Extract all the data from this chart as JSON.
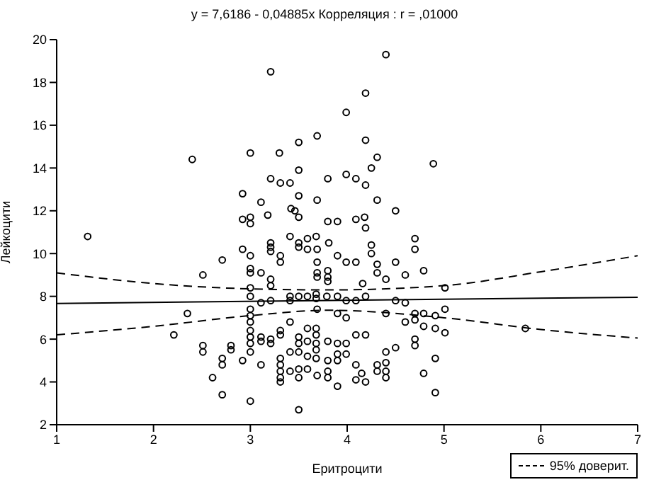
{
  "chart_data": {
    "type": "scatter",
    "title": "y = 7,6186 - 0,04885x  Корреляция : r = ,01000",
    "xlabel": "Еритроцити",
    "ylabel": "Лейкоцити",
    "xlim": [
      1,
      7
    ],
    "xticks": [
      1,
      2,
      3,
      4,
      5,
      6,
      7
    ],
    "ylim": [
      2,
      20
    ],
    "yticks": [
      2,
      4,
      6,
      8,
      10,
      12,
      14,
      16,
      18,
      20
    ],
    "legend": "bottom right",
    "series": [
      {
        "color": "#000000",
        "marker": "circle",
        "x": [
          1.32,
          2.4,
          3.21,
          4.19,
          3.99,
          4.19,
          3.0,
          3.3,
          3.5,
          3.69,
          3.5,
          3.21,
          3.31,
          3.41,
          3.8,
          3.99,
          4.09,
          4.19,
          2.92,
          3.5,
          3.11,
          3.69,
          3.42,
          3.46,
          2.92,
          3.0,
          3.0,
          3.18,
          3.5,
          3.8,
          3.9,
          4.09,
          4.18,
          4.19,
          3.41,
          3.59,
          3.68,
          4.4,
          4.31,
          4.25,
          4.89,
          4.31,
          4.5,
          4.7,
          3.81,
          2.92,
          3.0,
          3.21,
          3.21,
          3.21,
          3.31,
          3.31,
          3.5,
          3.5,
          3.59,
          3.69,
          3.9,
          3.99,
          4.09,
          2.71,
          2.51,
          3.0,
          3.0,
          3.11,
          3.21,
          3.21,
          3.69,
          3.69,
          3.69,
          3.8,
          3.8,
          3.8,
          4.16,
          3.0,
          3.0,
          3.11,
          3.21,
          3.41,
          3.41,
          3.5,
          3.59,
          3.68,
          3.68,
          3.79,
          3.9,
          3.99,
          4.09,
          4.19,
          2.35,
          3.0,
          3.0,
          3.41,
          3.69,
          3.9,
          3.99,
          2.21,
          2.51,
          2.51,
          2.8,
          2.8,
          3.0,
          3.0,
          3.0,
          3.0,
          3.0,
          3.11,
          3.11,
          3.21,
          3.21,
          3.31,
          3.31,
          3.5,
          3.5,
          3.5,
          3.59,
          3.59,
          3.68,
          3.68,
          3.68,
          3.68,
          3.68,
          3.8,
          3.9,
          3.99,
          4.09,
          4.19,
          2.71,
          2.71,
          2.92,
          3.11,
          3.31,
          3.31,
          3.31,
          3.31,
          3.31,
          3.41,
          3.41,
          3.5,
          3.5,
          3.59,
          3.59,
          3.69,
          3.8,
          3.8,
          3.8,
          3.9,
          3.9,
          3.99,
          3.9,
          4.09,
          4.09,
          4.19,
          2.61,
          2.71,
          3.0,
          3.5,
          4.7,
          4.79,
          5.01,
          4.5,
          4.6,
          4.4,
          4.31,
          4.31,
          4.25,
          4.25,
          4.5,
          4.6,
          4.4,
          4.7,
          4.79,
          4.91,
          5.01,
          4.7,
          4.79,
          4.91,
          5.01,
          4.6,
          5.84,
          4.7,
          4.7,
          4.5,
          4.4,
          4.4,
          4.4,
          4.4,
          4.31,
          4.31,
          4.91,
          4.79,
          4.91,
          4.15
        ],
        "values": [
          10.8,
          14.4,
          18.5,
          17.5,
          16.6,
          15.3,
          14.7,
          14.7,
          15.2,
          15.5,
          13.9,
          13.5,
          13.3,
          13.3,
          13.5,
          13.7,
          13.5,
          13.2,
          12.8,
          12.7,
          12.4,
          12.5,
          12.1,
          12.0,
          11.6,
          11.7,
          11.4,
          11.8,
          11.7,
          11.5,
          11.5,
          11.6,
          11.7,
          11.2,
          10.8,
          10.7,
          10.8,
          19.3,
          14.5,
          14.0,
          14.2,
          12.5,
          12.0,
          10.7,
          10.5,
          10.2,
          9.9,
          10.5,
          10.3,
          10.1,
          9.9,
          9.6,
          10.5,
          10.3,
          10.2,
          10.2,
          9.9,
          9.6,
          9.6,
          9.7,
          9.0,
          9.3,
          9.1,
          9.1,
          8.8,
          8.5,
          9.6,
          9.1,
          8.9,
          9.2,
          8.9,
          8.7,
          8.6,
          8.4,
          8.0,
          7.7,
          7.8,
          8.0,
          7.8,
          8.0,
          8.0,
          8.1,
          7.9,
          8.0,
          8.0,
          7.8,
          7.8,
          8.0,
          7.2,
          7.4,
          7.1,
          6.8,
          7.4,
          7.2,
          7.0,
          6.2,
          5.7,
          5.4,
          5.7,
          5.5,
          6.8,
          6.4,
          6.1,
          5.8,
          5.4,
          6.1,
          5.9,
          6.0,
          5.8,
          6.4,
          6.2,
          6.1,
          5.8,
          5.4,
          6.5,
          5.9,
          6.5,
          6.2,
          5.8,
          5.5,
          5.1,
          5.9,
          5.8,
          5.8,
          6.2,
          6.2,
          5.1,
          4.8,
          5.0,
          4.8,
          5.1,
          4.8,
          4.5,
          4.2,
          4.0,
          5.4,
          4.5,
          4.6,
          4.2,
          5.2,
          4.6,
          4.3,
          5.0,
          4.5,
          4.2,
          5.3,
          5.0,
          5.3,
          3.8,
          4.8,
          4.1,
          4.0,
          4.2,
          3.4,
          3.1,
          2.7,
          10.2,
          9.2,
          8.4,
          9.6,
          9.0,
          8.8,
          9.5,
          9.1,
          10.4,
          10.0,
          7.8,
          7.7,
          7.2,
          7.2,
          7.2,
          7.1,
          7.4,
          6.9,
          6.6,
          6.5,
          6.3,
          6.8,
          6.5,
          6.0,
          5.7,
          5.6,
          5.4,
          4.9,
          4.5,
          4.2,
          4.8,
          4.5,
          5.1,
          4.4,
          3.5,
          4.4
        ]
      },
      {
        "type": "line",
        "color": "#000000",
        "marker": "none",
        "line_style": "solid",
        "x": [
          1,
          7
        ],
        "values": [
          7.67,
          7.96
        ]
      },
      {
        "type": "line",
        "name": "95% доверит.",
        "color": "#000000",
        "marker": "none",
        "line_style": "dashed",
        "x": [
          1,
          2,
          3,
          3.8,
          5,
          6,
          7
        ],
        "values": [
          9.1,
          8.6,
          8.35,
          8.3,
          8.5,
          9.15,
          9.9
        ]
      },
      {
        "type": "line",
        "color": "#000000",
        "marker": "none",
        "line_style": "dashed",
        "x": [
          1,
          2,
          3,
          3.8,
          5,
          6,
          7
        ],
        "values": [
          6.2,
          6.6,
          7.1,
          7.35,
          7.0,
          6.45,
          6.05
        ]
      }
    ]
  }
}
